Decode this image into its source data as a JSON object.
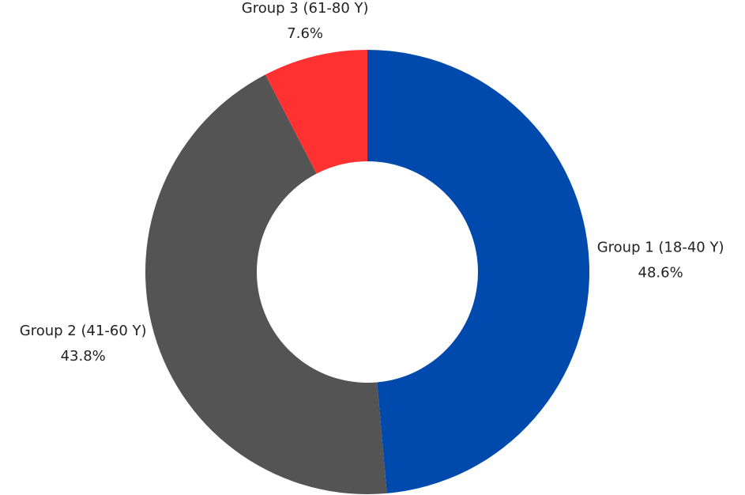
{
  "chart_data": {
    "type": "donut",
    "categories": [
      "Group 1 (18-40 Y)",
      "Group 2 (41-60 Y)",
      "Group 3 (61-80 Y)"
    ],
    "values": [
      48.6,
      43.8,
      7.6
    ],
    "value_labels": [
      "48.6%",
      "43.8%",
      "7.6%"
    ],
    "colors": [
      "#004aad",
      "#545454",
      "#ff3131"
    ]
  }
}
